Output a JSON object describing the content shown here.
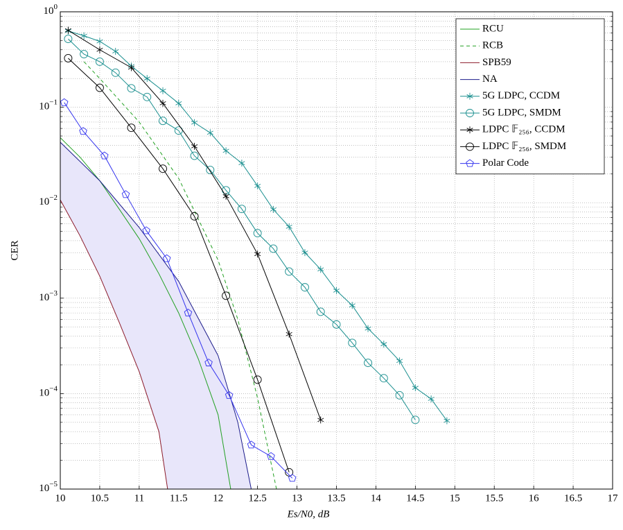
{
  "chart_data": {
    "type": "line",
    "xlabel": "Es/N0, dB",
    "ylabel": "CER",
    "xlim": [
      10,
      17
    ],
    "xticks": [
      10,
      10.5,
      11,
      11.5,
      12,
      12.5,
      13,
      13.5,
      14,
      14.5,
      15,
      15.5,
      16,
      16.5,
      17
    ],
    "ylim": [
      1e-05,
      1
    ],
    "log_y": true,
    "grid": true,
    "legend": "upper right",
    "yticks": [
      {
        "value": 1,
        "label": "10^0"
      },
      {
        "value": 0.1,
        "label": "10^−1"
      },
      {
        "value": 0.01,
        "label": "10^−2"
      },
      {
        "value": 0.001,
        "label": "10^−3"
      },
      {
        "value": 0.0001,
        "label": "10^−4"
      },
      {
        "value": 1e-05,
        "label": "10^−5"
      }
    ],
    "shaded_region": {
      "between": [
        "SPB59",
        "NA"
      ],
      "color": "#e8e6fa"
    },
    "series": [
      {
        "name": "RCU",
        "color": "#22a022",
        "dash": false,
        "marker": null,
        "x": [
          10,
          10.25,
          10.5,
          10.75,
          11,
          11.25,
          11.5,
          11.75,
          12,
          12.16
        ],
        "values": [
          0.048,
          0.03,
          0.017,
          0.0085,
          0.0042,
          0.0018,
          0.0007,
          0.00023,
          6e-05,
          1e-05
        ]
      },
      {
        "name": "RCB",
        "color": "#22a022",
        "dash": true,
        "marker": null,
        "x": [
          10.3,
          10.5,
          11,
          11.5,
          12,
          12.25,
          12.5,
          12.74
        ],
        "values": [
          0.3,
          0.2,
          0.07,
          0.018,
          0.0025,
          0.0006,
          9e-05,
          1e-05
        ]
      },
      {
        "name": "SPB59",
        "color": "#8b1a2a",
        "dash": false,
        "marker": null,
        "x": [
          10,
          10.25,
          10.5,
          10.75,
          11,
          11.25,
          11.36
        ],
        "values": [
          0.0107,
          0.0045,
          0.0017,
          0.00055,
          0.00017,
          4e-05,
          1e-05
        ]
      },
      {
        "name": "NA",
        "color": "#1a1a8a",
        "dash": false,
        "marker": null,
        "x": [
          10,
          10.5,
          11,
          11.5,
          12,
          12.25,
          12.42
        ],
        "values": [
          0.043,
          0.017,
          0.0055,
          0.0015,
          0.00025,
          5e-05,
          1e-05
        ]
      },
      {
        "name": "5G LDPC, CCDM",
        "color": "#1a8f8f",
        "dash": false,
        "marker": "star",
        "x": [
          10.1,
          10.3,
          10.5,
          10.7,
          10.9,
          11.1,
          11.3,
          11.5,
          11.7,
          11.9,
          12.1,
          12.3,
          12.5,
          12.7,
          12.9,
          13.1,
          13.3,
          13.5,
          13.7,
          13.9,
          14.1,
          14.3,
          14.5,
          14.7,
          14.9
        ],
        "values": [
          0.63,
          0.56,
          0.49,
          0.385,
          0.27,
          0.2,
          0.149,
          0.11,
          0.069,
          0.054,
          0.035,
          0.026,
          0.015,
          0.0085,
          0.0056,
          0.003,
          0.002,
          0.0012,
          0.00084,
          0.00048,
          0.00033,
          0.00022,
          0.000115,
          8.8e-05,
          5.2e-05
        ]
      },
      {
        "name": "5G LDPC, SMDM",
        "color": "#1a8f8f",
        "dash": false,
        "marker": "circle",
        "x": [
          10.1,
          10.3,
          10.5,
          10.7,
          10.9,
          11.1,
          11.3,
          11.5,
          11.7,
          11.9,
          12.1,
          12.3,
          12.5,
          12.7,
          12.9,
          13.1,
          13.3,
          13.5,
          13.7,
          13.9,
          14.1,
          14.3,
          14.5
        ],
        "values": [
          0.52,
          0.36,
          0.3,
          0.23,
          0.158,
          0.128,
          0.072,
          0.057,
          0.031,
          0.022,
          0.0135,
          0.0086,
          0.0048,
          0.0033,
          0.0019,
          0.0013,
          0.00072,
          0.00053,
          0.00034,
          0.00021,
          0.000145,
          9.6e-05,
          5.3e-05
        ]
      },
      {
        "name": "LDPC 𝔽₂₅₆, CCDM",
        "color": "#000000",
        "dash": false,
        "marker": "star",
        "x": [
          10.1,
          10.5,
          10.9,
          11.3,
          11.7,
          12.1,
          12.5,
          12.9,
          13.3
        ],
        "values": [
          0.64,
          0.4,
          0.26,
          0.11,
          0.039,
          0.0117,
          0.0029,
          0.00042,
          5.3e-05
        ]
      },
      {
        "name": "LDPC 𝔽₂₅₆, SMDM",
        "color": "#000000",
        "dash": false,
        "marker": "circle",
        "x": [
          10.1,
          10.5,
          10.9,
          11.3,
          11.7,
          12.1,
          12.5,
          12.9
        ],
        "values": [
          0.326,
          0.16,
          0.061,
          0.0227,
          0.0072,
          0.00106,
          0.00014,
          1.5e-05
        ]
      },
      {
        "name": "Polar Code",
        "color": "#3333ee",
        "dash": false,
        "marker": "pentagon",
        "x": [
          10.05,
          10.29,
          10.56,
          10.83,
          11.09,
          11.35,
          11.62,
          11.88,
          12.14,
          12.42,
          12.67,
          12.94
        ],
        "values": [
          0.112,
          0.056,
          0.031,
          0.0122,
          0.0051,
          0.0026,
          0.0007,
          0.00021,
          9.6e-05,
          2.9e-05,
          2.2e-05,
          1.3e-05
        ]
      }
    ]
  }
}
